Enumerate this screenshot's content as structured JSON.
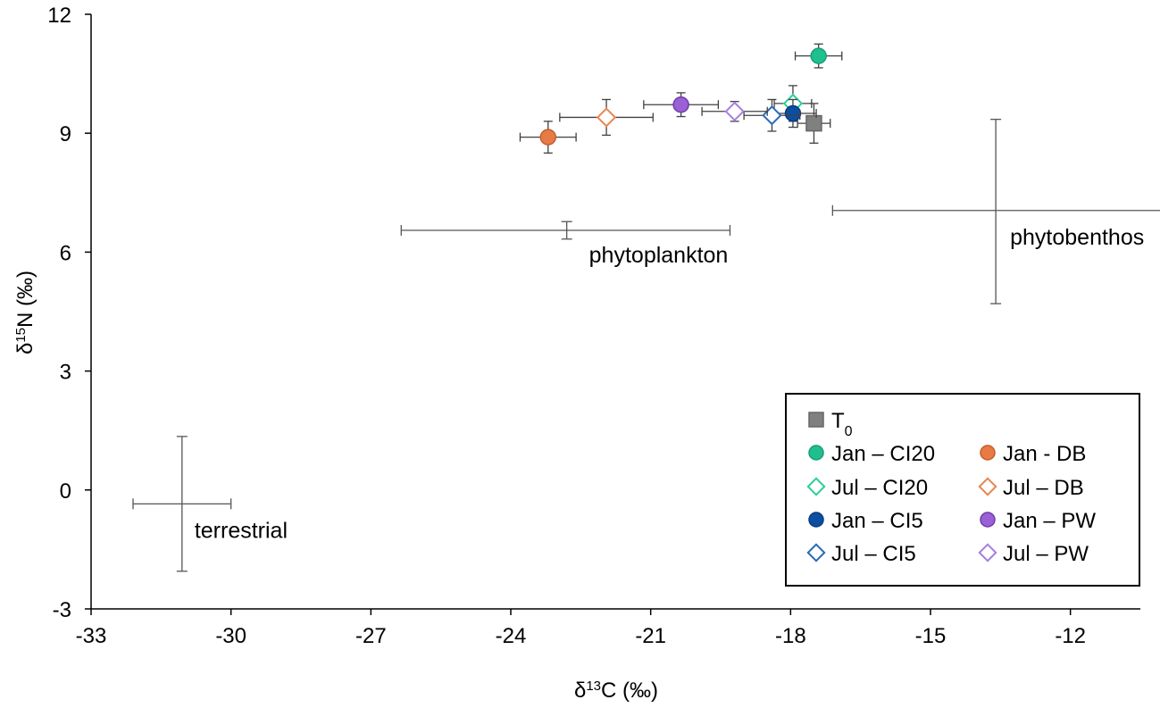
{
  "chart_data": {
    "type": "scatter",
    "title": "",
    "xlabel": {
      "prefix": "δ",
      "sup": "13",
      "suffix": "C (‰)"
    },
    "ylabel": {
      "prefix": "δ",
      "sup": "15",
      "suffix": "N (‰)"
    },
    "xlim": [
      -33,
      -10.5
    ],
    "ylim": [
      -3,
      12
    ],
    "xticks": [
      -33,
      -30,
      -27,
      -24,
      -21,
      -18,
      -15,
      -12
    ],
    "yticks": [
      -3,
      0,
      3,
      6,
      9,
      12
    ],
    "grid": false,
    "series": [
      {
        "key": "T0",
        "name": "T",
        "name_sub": "0",
        "marker": "square",
        "fill": "#808080",
        "stroke": "#666666",
        "x": -17.5,
        "y": 9.25,
        "xerr": 0.35,
        "yerr": 0.5
      },
      {
        "key": "jan_ci20",
        "name": "Jan – CI20",
        "marker": "circle",
        "fill": "#1fbf8f",
        "stroke": "#1a9e76",
        "x": -17.4,
        "y": 10.95,
        "xerr": 0.5,
        "yerr": 0.3
      },
      {
        "key": "jul_ci20",
        "name": "Jul – CI20",
        "marker": "diamond",
        "fill": "#ffffff",
        "stroke": "#2ccf9a",
        "x": -17.95,
        "y": 9.75,
        "xerr": 0.4,
        "yerr": 0.45
      },
      {
        "key": "jan_ci5",
        "name": "Jan – CI5",
        "marker": "circle",
        "fill": "#0b4ea2",
        "stroke": "#083d80",
        "x": -17.95,
        "y": 9.5,
        "xerr": 0.5,
        "yerr": 0.35
      },
      {
        "key": "jul_ci5",
        "name": "Jul – CI5",
        "marker": "diamond",
        "fill": "#ffffff",
        "stroke": "#2a6ab8",
        "x": -18.4,
        "y": 9.45,
        "xerr": 0.6,
        "yerr": 0.4
      },
      {
        "key": "jan_db",
        "name": "Jan - DB",
        "marker": "circle",
        "fill": "#e87b45",
        "stroke": "#c25f2c",
        "x": -23.2,
        "y": 8.9,
        "xerr": 0.6,
        "yerr": 0.4
      },
      {
        "key": "jul_db",
        "name": "Jul – DB",
        "marker": "diamond",
        "fill": "#ffffff",
        "stroke": "#e8874f",
        "x": -21.95,
        "y": 9.4,
        "xerr": 1.0,
        "yerr": 0.45
      },
      {
        "key": "jan_pw",
        "name": "Jan – PW",
        "marker": "circle",
        "fill": "#9b5fd6",
        "stroke": "#6e3ea8",
        "x": -20.35,
        "y": 9.72,
        "xerr": 0.8,
        "yerr": 0.3
      },
      {
        "key": "jul_pw",
        "name": "Jul – PW",
        "marker": "diamond",
        "fill": "#ffffff",
        "stroke": "#a77fe0",
        "x": -19.2,
        "y": 9.55,
        "xerr": 0.7,
        "yerr": 0.25
      }
    ],
    "sources": [
      {
        "key": "terrestrial",
        "label": "terrestrial",
        "x": -31.05,
        "y": -0.35,
        "xerr_low": 1.05,
        "xerr_high": 1.05,
        "yerr_low": 1.7,
        "yerr_high": 1.7
      },
      {
        "key": "phytoplankton",
        "label": "phytoplankton",
        "x": -22.8,
        "y": 6.55,
        "xerr_low": 3.55,
        "xerr_high": 3.5,
        "yerr_low": 0.22,
        "yerr_high": 0.22
      },
      {
        "key": "phytobenthos",
        "label": "phytobenthos",
        "x": -13.6,
        "y": 7.05,
        "xerr_low": 3.5,
        "xerr_high": 3.55,
        "yerr_low": 2.35,
        "yerr_high": 2.3
      }
    ],
    "legend": {
      "placement": "bottom-right",
      "entries": [
        "T0",
        "jan_ci20",
        "jan_db",
        "jul_ci20",
        "jul_db",
        "jan_ci5",
        "jan_pw",
        "jul_ci5",
        "jul_pw"
      ]
    },
    "colors": {
      "axis": "#000000",
      "errorbar": "#404040",
      "source_errorbar": "#555555"
    }
  }
}
